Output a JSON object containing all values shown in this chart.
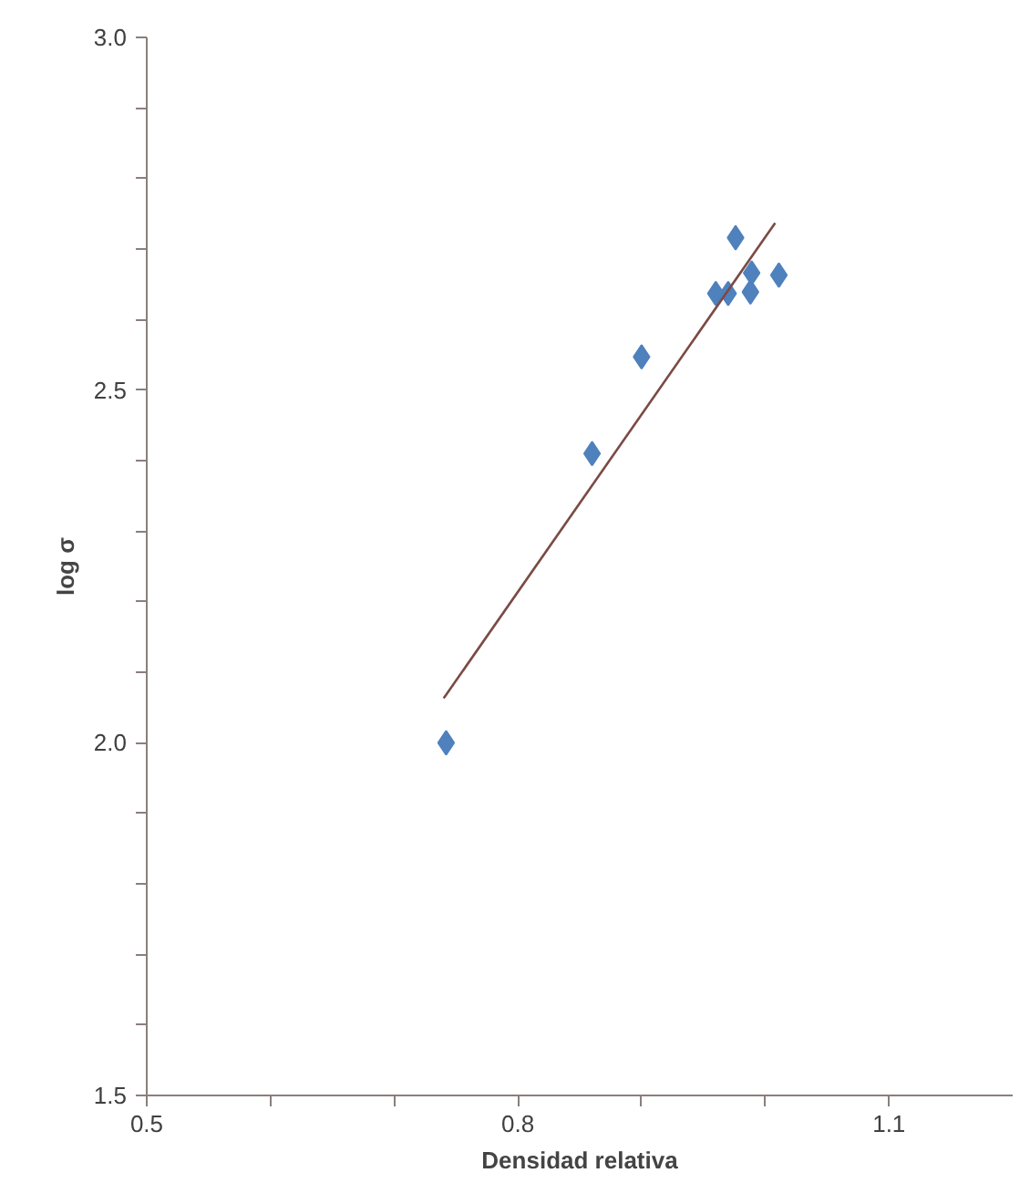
{
  "chart_data": {
    "type": "scatter",
    "xlabel": "Densidad relativa",
    "ylabel": "log σ",
    "xlim": [
      0.5,
      1.2
    ],
    "ylim": [
      1.5,
      3.0
    ],
    "xticks": [
      {
        "value": 0.5,
        "label": "0.5"
      },
      {
        "value": 0.6,
        "label": null
      },
      {
        "value": 0.7,
        "label": null
      },
      {
        "value": 0.8,
        "label": "0.8"
      },
      {
        "value": 0.9,
        "label": null
      },
      {
        "value": 1.0,
        "label": null
      },
      {
        "value": 1.1,
        "label": "1.1"
      }
    ],
    "yticks": [
      {
        "value": 1.5,
        "label": "1.5"
      },
      {
        "value": 1.6,
        "label": null
      },
      {
        "value": 1.7,
        "label": null
      },
      {
        "value": 1.8,
        "label": null
      },
      {
        "value": 1.9,
        "label": null
      },
      {
        "value": 2.0,
        "label": "2.0"
      },
      {
        "value": 2.1,
        "label": null
      },
      {
        "value": 2.2,
        "label": null
      },
      {
        "value": 2.3,
        "label": null
      },
      {
        "value": 2.4,
        "label": null
      },
      {
        "value": 2.5,
        "label": "2.5"
      },
      {
        "value": 2.6,
        "label": null
      },
      {
        "value": 2.7,
        "label": null
      },
      {
        "value": 2.8,
        "label": null
      },
      {
        "value": 2.9,
        "label": null
      },
      {
        "value": 3.0,
        "label": "3.0"
      }
    ],
    "grid": false,
    "series": [
      {
        "marker": "diamond",
        "color": "#4f81bd",
        "x": [
          0.742,
          0.86,
          0.9,
          0.96,
          0.97,
          0.976,
          0.988,
          0.989,
          1.011
        ],
        "values": [
          2.0,
          2.41,
          2.547,
          2.637,
          2.637,
          2.716,
          2.639,
          2.666,
          2.663
        ]
      },
      {
        "type": "line",
        "color": "#7b4a44",
        "x": [
          0.74,
          1.008
        ],
        "values": [
          2.063,
          2.737
        ]
      }
    ]
  }
}
